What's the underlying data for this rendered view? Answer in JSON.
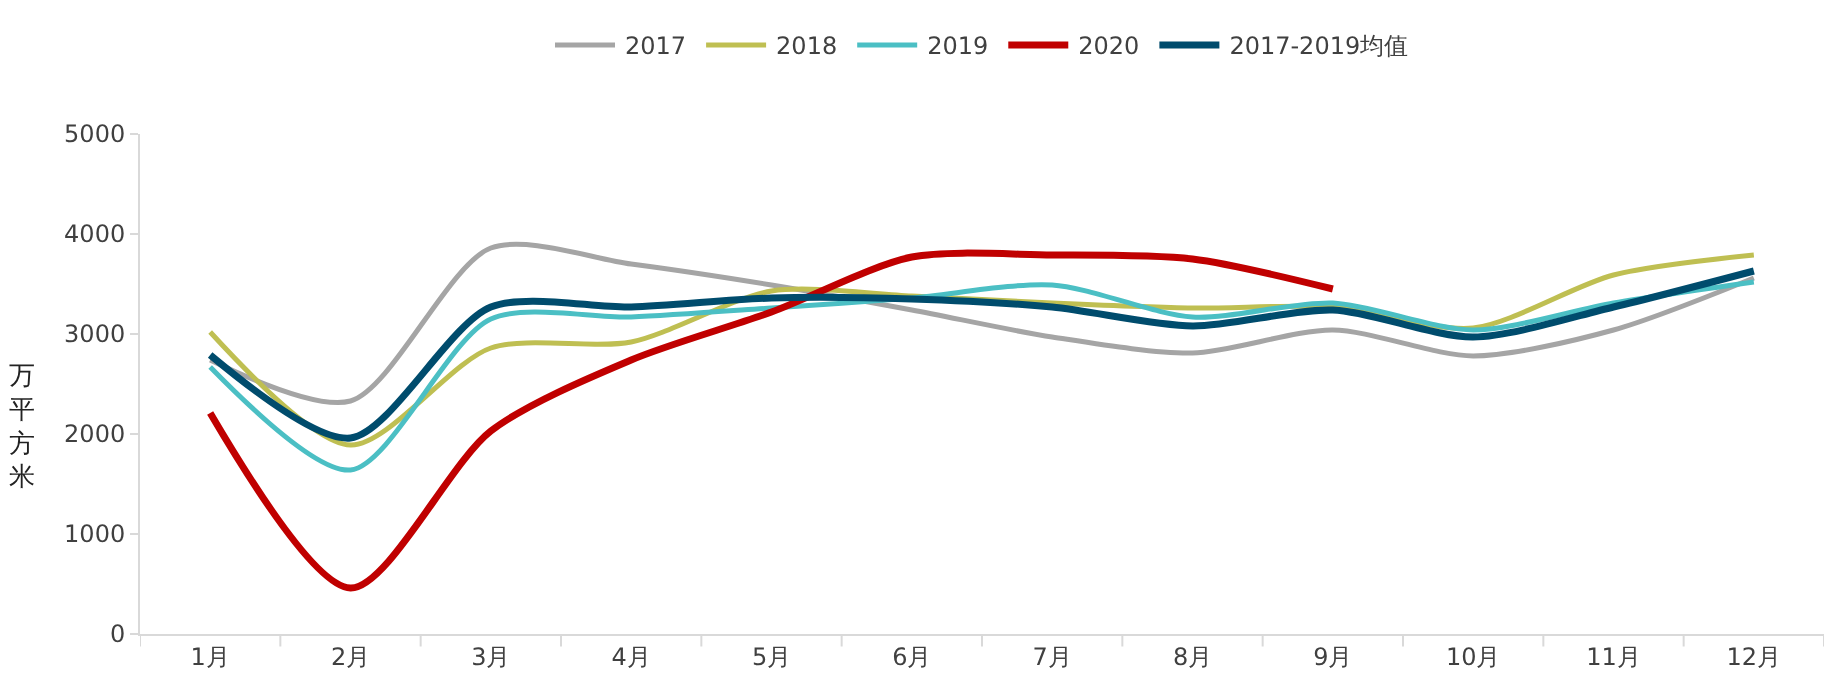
{
  "chart_data": {
    "type": "line",
    "ylabel": "万平方米",
    "categories": [
      "1月",
      "2月",
      "3月",
      "4月",
      "5月",
      "6月",
      "7月",
      "8月",
      "9月",
      "10月",
      "11月",
      "12月"
    ],
    "series": [
      {
        "name": "2017",
        "color": "#a5a5a5",
        "values": [
          2740,
          2330,
          3860,
          3700,
          3490,
          3240,
          2970,
          2810,
          3040,
          2780,
          3040,
          3560
        ]
      },
      {
        "name": "2018",
        "color": "#bfbf52",
        "values": [
          3020,
          1890,
          2860,
          2920,
          3430,
          3380,
          3310,
          3260,
          3270,
          3060,
          3590,
          3790
        ]
      },
      {
        "name": "2019",
        "color": "#4bbfc4",
        "values": [
          2670,
          1640,
          3150,
          3170,
          3260,
          3360,
          3490,
          3170,
          3310,
          3040,
          3310,
          3520
        ]
      },
      {
        "name": "2020",
        "color": "#c00000",
        "values": [
          2210,
          460,
          2030,
          2740,
          3220,
          3770,
          3790,
          3750,
          3450,
          null,
          null,
          null
        ]
      },
      {
        "name": "2017-2019均值",
        "color": "#004c6d",
        "values": [
          2790,
          1960,
          3270,
          3270,
          3360,
          3350,
          3270,
          3080,
          3240,
          2970,
          3270,
          3630
        ]
      }
    ],
    "ylim": [
      0,
      5000
    ],
    "yticks": [
      0,
      1000,
      2000,
      3000,
      4000,
      5000
    ],
    "grid": false,
    "legend": "top",
    "marker": "none",
    "line_style": "solid"
  }
}
